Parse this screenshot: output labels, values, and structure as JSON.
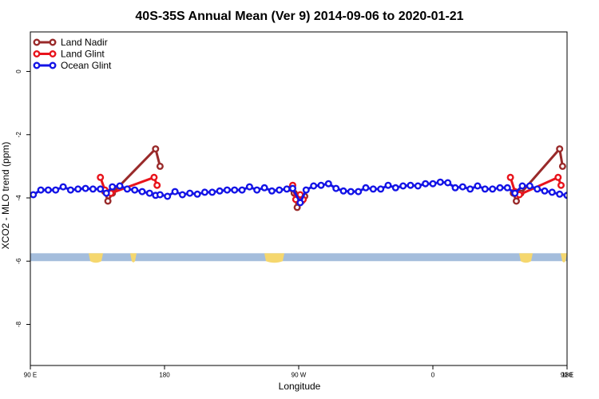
{
  "chart_data": {
    "type": "line",
    "title": "40S-35S Annual Mean (Ver 9)   2014-09-06 to 2020-01-21",
    "xlabel": "Longitude",
    "ylabel": "XCO2 - MLO trend (ppm)",
    "xlim": [
      90,
      450
    ],
    "ylim": [
      -9.3,
      1.25
    ],
    "x_ticks": [
      {
        "value": 90,
        "label": "90 E"
      },
      {
        "value": 180,
        "label": "180"
      },
      {
        "value": 270,
        "label": "90 W"
      },
      {
        "value": 360,
        "label": "0"
      },
      {
        "value": 450,
        "label": "90 E"
      },
      {
        "value": 540,
        "label": "180"
      }
    ],
    "y_ticks": [
      {
        "value": 0,
        "label": "0"
      },
      {
        "value": -2,
        "label": "-2"
      },
      {
        "value": -4,
        "label": "-4"
      },
      {
        "value": -6,
        "label": "-6"
      },
      {
        "value": -8,
        "label": "-8"
      }
    ],
    "legend_position": "top-left",
    "land_strip": {
      "y_top": -5.75,
      "y_bottom": -6.0,
      "ocean_color": "#a4bddc",
      "land_color": "#f5d76e"
    },
    "series": [
      {
        "name": "Land Nadir",
        "color": "#992a2a",
        "segments": [
          [
            [
              140,
              -3.8
            ],
            [
              142,
              -4.1
            ],
            [
              145,
              -3.85
            ],
            [
              174,
              -2.45
            ],
            [
              177,
              -3.0
            ]
          ],
          [
            [
              265,
              -3.7
            ],
            [
              267,
              -3.85
            ],
            [
              269,
              -4.3
            ],
            [
              272,
              -4.1
            ],
            [
              274,
              -3.95
            ]
          ],
          [
            [
              414,
              -3.85
            ],
            [
              416,
              -4.1
            ],
            [
              419,
              -3.85
            ],
            [
              445,
              -2.45
            ],
            [
              447,
              -3.0
            ]
          ]
        ]
      },
      {
        "name": "Land Glint",
        "color": "#e8141c",
        "segments": [
          [
            [
              137,
              -3.35
            ],
            [
              140,
              -3.75
            ],
            [
              144,
              -3.85
            ],
            [
              173,
              -3.35
            ],
            [
              175,
              -3.6
            ]
          ],
          [
            [
              266,
              -3.6
            ],
            [
              268,
              -4.05
            ],
            [
              271,
              -3.9
            ],
            [
              273,
              -4.05
            ]
          ],
          [
            [
              412,
              -3.35
            ],
            [
              415,
              -3.8
            ],
            [
              418,
              -3.9
            ],
            [
              444,
              -3.35
            ],
            [
              446,
              -3.6
            ]
          ]
        ]
      },
      {
        "name": "Ocean Glint",
        "color": "#1414e6",
        "segments": [
          [
            [
              92,
              -3.9
            ],
            [
              97,
              -3.75
            ],
            [
              102,
              -3.75
            ],
            [
              107,
              -3.75
            ],
            [
              112,
              -3.65
            ],
            [
              117,
              -3.75
            ],
            [
              122,
              -3.72
            ],
            [
              127,
              -3.7
            ],
            [
              132,
              -3.72
            ],
            [
              137,
              -3.72
            ],
            [
              141,
              -3.85
            ],
            [
              145,
              -3.65
            ],
            [
              150,
              -3.62
            ],
            [
              155,
              -3.72
            ],
            [
              160,
              -3.75
            ],
            [
              165,
              -3.8
            ],
            [
              170,
              -3.85
            ],
            [
              174,
              -3.92
            ],
            [
              177,
              -3.9
            ],
            [
              182,
              -3.95
            ],
            [
              187,
              -3.8
            ],
            [
              192,
              -3.9
            ],
            [
              197,
              -3.85
            ],
            [
              202,
              -3.88
            ],
            [
              207,
              -3.82
            ],
            [
              212,
              -3.82
            ],
            [
              217,
              -3.78
            ],
            [
              222,
              -3.75
            ],
            [
              227,
              -3.75
            ],
            [
              232,
              -3.75
            ],
            [
              237,
              -3.65
            ],
            [
              242,
              -3.75
            ],
            [
              247,
              -3.68
            ],
            [
              252,
              -3.78
            ],
            [
              257,
              -3.75
            ],
            [
              262,
              -3.72
            ],
            [
              266,
              -3.7
            ],
            [
              271,
              -4.15
            ],
            [
              275,
              -3.75
            ],
            [
              280,
              -3.62
            ],
            [
              285,
              -3.6
            ],
            [
              290,
              -3.55
            ],
            [
              295,
              -3.7
            ],
            [
              300,
              -3.78
            ],
            [
              305,
              -3.8
            ],
            [
              310,
              -3.8
            ],
            [
              315,
              -3.68
            ],
            [
              320,
              -3.72
            ],
            [
              325,
              -3.72
            ],
            [
              330,
              -3.6
            ],
            [
              335,
              -3.68
            ],
            [
              340,
              -3.62
            ],
            [
              345,
              -3.6
            ],
            [
              350,
              -3.62
            ],
            [
              355,
              -3.55
            ],
            [
              360,
              -3.55
            ],
            [
              365,
              -3.5
            ],
            [
              370,
              -3.52
            ],
            [
              375,
              -3.68
            ],
            [
              380,
              -3.65
            ],
            [
              385,
              -3.72
            ],
            [
              390,
              -3.62
            ],
            [
              395,
              -3.72
            ],
            [
              400,
              -3.72
            ],
            [
              405,
              -3.68
            ],
            [
              410,
              -3.68
            ],
            [
              415,
              -3.85
            ],
            [
              420,
              -3.62
            ],
            [
              425,
              -3.62
            ],
            [
              430,
              -3.72
            ],
            [
              435,
              -3.78
            ],
            [
              440,
              -3.82
            ],
            [
              445,
              -3.88
            ],
            [
              450,
              -3.92
            ]
          ]
        ]
      }
    ]
  }
}
